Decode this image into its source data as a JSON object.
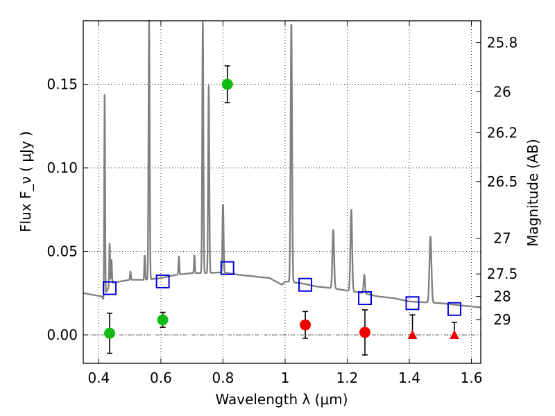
{
  "chart_data": {
    "type": "scatter",
    "xlabel": "Wavelength  λ (μm)",
    "ylabel": "Flux  F_ν  ( μJy )",
    "ylabel_right": "Magnitude (AB)",
    "xlim": [
      0.35,
      1.63
    ],
    "ylim": [
      -0.017,
      0.188
    ],
    "x_ticks": [
      0.4,
      0.6,
      0.8,
      1.0,
      1.2,
      1.4,
      1.6
    ],
    "x_tick_labels": [
      "0.4",
      "0.6",
      "0.8",
      "1",
      "1.2",
      "1.4",
      "1.6"
    ],
    "y_ticks": [
      0.0,
      0.05,
      0.1,
      0.15
    ],
    "y_tick_labels": [
      "0.00",
      "0.05",
      "0.10",
      "0.15"
    ],
    "right_ticks": [
      {
        "label": "25.8",
        "flux": 0.1749
      },
      {
        "label": "26",
        "flux": 0.1455
      },
      {
        "label": "26.2",
        "flux": 0.121
      },
      {
        "label": "26.5",
        "flux": 0.0918
      },
      {
        "label": "27",
        "flux": 0.0579
      },
      {
        "label": "27.5",
        "flux": 0.0365
      },
      {
        "label": "28",
        "flux": 0.023
      },
      {
        "label": "29",
        "flux": 0.0092
      }
    ],
    "grid": true,
    "zero_line": true,
    "colors": {
      "green": "#11bb11",
      "red": "#ee0000",
      "blue": "#0000dd",
      "template": "#808080",
      "errorbar": "#000000"
    },
    "series": [
      {
        "marker": "circle",
        "color": "green",
        "points": [
          {
            "x": 0.435,
            "y": 0.001,
            "err": 0.012
          },
          {
            "x": 0.606,
            "y": 0.009,
            "err": 0.0045
          },
          {
            "x": 0.814,
            "y": 0.15,
            "err": 0.011
          }
        ]
      },
      {
        "marker": "circle",
        "color": "red",
        "points": [
          {
            "x": 1.065,
            "y": 0.006,
            "err": 0.008
          },
          {
            "x": 1.257,
            "y": 0.0015,
            "err": 0.0135
          }
        ]
      },
      {
        "marker": "triangle",
        "color": "red",
        "points": [
          {
            "x": 1.41,
            "y": 0.0,
            "err_up": 0.012
          },
          {
            "x": 1.545,
            "y": 0.0,
            "err_up": 0.0075
          }
        ]
      },
      {
        "marker": "open-square",
        "color": "blue",
        "points": [
          {
            "x": 0.435,
            "y": 0.028
          },
          {
            "x": 0.606,
            "y": 0.032
          },
          {
            "x": 0.814,
            "y": 0.04
          },
          {
            "x": 1.065,
            "y": 0.03
          },
          {
            "x": 1.257,
            "y": 0.022
          },
          {
            "x": 1.41,
            "y": 0.019
          },
          {
            "x": 1.545,
            "y": 0.0155
          }
        ]
      },
      {
        "type": "line",
        "color": "template",
        "continuum": [
          [
            0.35,
            0.025
          ],
          [
            0.38,
            0.024
          ],
          [
            0.41,
            0.023
          ],
          [
            0.415,
            0.021
          ],
          [
            0.425,
            0.026
          ],
          [
            0.44,
            0.031
          ],
          [
            0.47,
            0.032
          ],
          [
            0.5,
            0.033
          ],
          [
            0.55,
            0.033
          ],
          [
            0.6,
            0.034
          ],
          [
            0.65,
            0.036
          ],
          [
            0.7,
            0.037
          ],
          [
            0.75,
            0.037
          ],
          [
            0.8,
            0.0375
          ],
          [
            0.85,
            0.036
          ],
          [
            0.9,
            0.035
          ],
          [
            0.95,
            0.034
          ],
          [
            0.99,
            0.03
          ],
          [
            1.0,
            0.032
          ],
          [
            1.05,
            0.031
          ],
          [
            1.1,
            0.029
          ],
          [
            1.15,
            0.028
          ],
          [
            1.2,
            0.0265
          ],
          [
            1.25,
            0.025
          ],
          [
            1.3,
            0.023
          ],
          [
            1.35,
            0.022
          ],
          [
            1.4,
            0.02
          ],
          [
            1.45,
            0.0195
          ],
          [
            1.5,
            0.019
          ],
          [
            1.55,
            0.018
          ],
          [
            1.6,
            0.017
          ],
          [
            1.63,
            0.0165
          ]
        ],
        "lines": [
          {
            "x": 0.419,
            "peak": 0.145,
            "width": 0.003
          },
          {
            "x": 0.435,
            "peak": 0.055,
            "width": 0.003
          },
          {
            "x": 0.441,
            "peak": 0.045,
            "width": 0.003
          },
          {
            "x": 0.502,
            "peak": 0.038,
            "width": 0.003
          },
          {
            "x": 0.548,
            "peak": 0.048,
            "width": 0.003
          },
          {
            "x": 0.562,
            "peak": 0.188,
            "width": 0.004
          },
          {
            "x": 0.658,
            "peak": 0.047,
            "width": 0.003
          },
          {
            "x": 0.708,
            "peak": 0.048,
            "width": 0.003
          },
          {
            "x": 0.735,
            "peak": 0.188,
            "width": 0.004
          },
          {
            "x": 0.754,
            "peak": 0.149,
            "width": 0.004
          },
          {
            "x": 0.8,
            "peak": 0.079,
            "width": 0.004
          },
          {
            "x": 1.02,
            "peak": 0.188,
            "width": 0.005
          },
          {
            "x": 1.155,
            "peak": 0.063,
            "width": 0.006
          },
          {
            "x": 1.213,
            "peak": 0.075,
            "width": 0.006
          },
          {
            "x": 1.255,
            "peak": 0.036,
            "width": 0.005
          },
          {
            "x": 1.468,
            "peak": 0.059,
            "width": 0.007
          }
        ]
      }
    ]
  }
}
